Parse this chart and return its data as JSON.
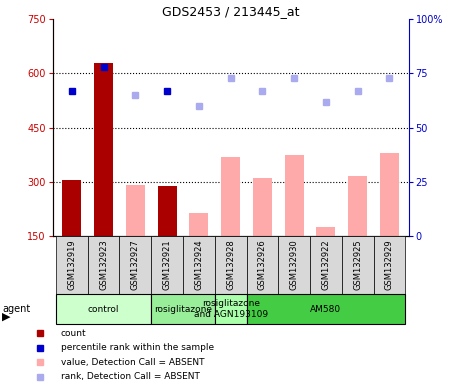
{
  "title": "GDS2453 / 213445_at",
  "samples": [
    "GSM132919",
    "GSM132923",
    "GSM132927",
    "GSM132921",
    "GSM132924",
    "GSM132928",
    "GSM132926",
    "GSM132930",
    "GSM132922",
    "GSM132925",
    "GSM132929"
  ],
  "bar_values": [
    305,
    630,
    292,
    290,
    215,
    370,
    310,
    375,
    175,
    315,
    380
  ],
  "bar_absent": [
    false,
    false,
    true,
    false,
    true,
    true,
    true,
    true,
    true,
    true,
    true
  ],
  "rank_values": [
    67,
    78,
    65,
    67,
    60,
    73,
    67,
    73,
    62,
    67,
    73
  ],
  "rank_absent": [
    false,
    false,
    true,
    false,
    true,
    true,
    true,
    true,
    true,
    true,
    true
  ],
  "ylim_left": [
    150,
    750
  ],
  "ylim_right": [
    0,
    100
  ],
  "yticks_left": [
    150,
    300,
    450,
    600,
    750
  ],
  "yticks_right": [
    0,
    25,
    50,
    75,
    100
  ],
  "agent_groups": [
    {
      "label": "control",
      "start": 0,
      "end": 2,
      "color": "#ccffcc"
    },
    {
      "label": "rosiglitazone",
      "start": 3,
      "end": 4,
      "color": "#99ee99"
    },
    {
      "label": "rosiglitazone\nand AGN193109",
      "start": 5,
      "end": 5,
      "color": "#aaffaa"
    },
    {
      "label": "AM580",
      "start": 6,
      "end": 10,
      "color": "#44cc44"
    }
  ],
  "color_bar_present": "#aa0000",
  "color_bar_absent": "#ffaaaa",
  "color_rank_present": "#0000cc",
  "color_rank_absent": "#aaaaee",
  "bar_width": 0.6,
  "sample_bg": "#d8d8d8",
  "gridline_values": [
    300,
    450,
    600
  ]
}
